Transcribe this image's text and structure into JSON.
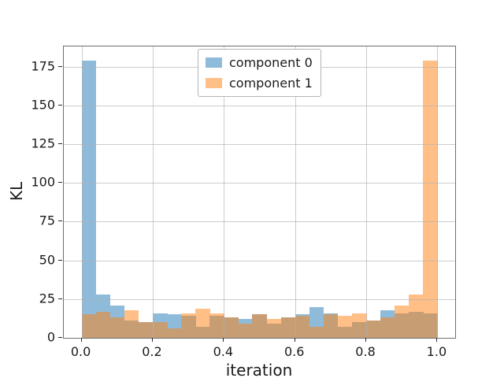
{
  "figure": {
    "background": "#ffffff",
    "title": ""
  },
  "axes": {
    "xlabel": "iteration",
    "ylabel": "KL",
    "grid": true
  },
  "legend": {
    "position": "upper center",
    "items": [
      {
        "label": "component 0",
        "color": "#8fbbda"
      },
      {
        "label": "component 1",
        "color": "#ffbf86"
      }
    ]
  },
  "chart_data": {
    "type": "bar",
    "subtype": "histogram-overlay",
    "title": "",
    "xlabel": "iteration",
    "ylabel": "KL",
    "bins": {
      "start": 0.0,
      "end": 1.0,
      "count": 25,
      "bin_width": 0.04
    },
    "series": [
      {
        "name": "component 0",
        "color": "#8fbbda",
        "values": [
          179,
          28,
          21,
          11,
          10,
          16,
          15,
          14,
          7,
          14,
          13,
          12,
          15,
          9,
          13,
          15,
          20,
          16,
          7,
          10,
          11,
          18,
          16,
          17,
          16
        ]
      },
      {
        "name": "component 1",
        "color": "#ffbf86",
        "values": [
          15,
          17,
          13,
          18,
          10,
          10,
          6,
          16,
          19,
          16,
          13,
          9,
          15,
          12,
          13,
          14,
          7,
          15,
          14,
          16,
          11,
          13,
          21,
          28,
          179
        ]
      }
    ],
    "overlap_color": "#c79d74",
    "xlim": [
      -0.05,
      1.05
    ],
    "ylim": [
      0,
      188
    ],
    "xticks": {
      "values": [
        0.0,
        0.2,
        0.4,
        0.6,
        0.8,
        1.0
      ],
      "labels": [
        "0.0",
        "0.2",
        "0.4",
        "0.6",
        "0.8",
        "1.0"
      ]
    },
    "yticks": {
      "values": [
        0,
        25,
        50,
        75,
        100,
        125,
        150,
        175
      ],
      "labels": [
        "0",
        "25",
        "50",
        "75",
        "100",
        "125",
        "150",
        "175"
      ]
    },
    "grid": true,
    "legend_position": "upper center"
  },
  "colors": {
    "component0_fill": "#8fbbda",
    "component1_fill": "#ffbf86",
    "overlap_fill": "#c79d74",
    "gridline": "#b0b0b0",
    "spine": "#6e6e6e",
    "text": "#1a1a1a",
    "background": "#ffffff"
  }
}
